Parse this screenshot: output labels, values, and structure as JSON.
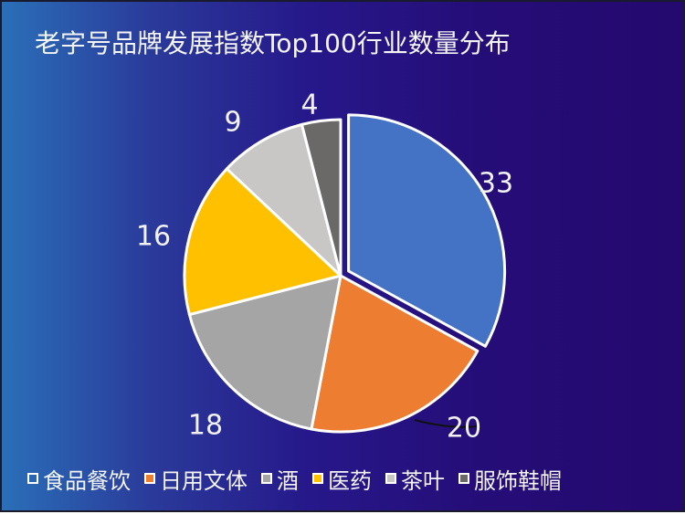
{
  "title": "老字号品牌发展指数Top100行业数量分布",
  "chart_data": {
    "type": "pie",
    "title": "老字号品牌发展指数Top100行业数量分布",
    "categories": [
      "食品餐饮",
      "日用文体",
      "酒",
      "医药",
      "茶叶",
      "服饰鞋帽"
    ],
    "values": [
      33,
      20,
      18,
      16,
      9,
      4
    ],
    "colors": [
      "#4472c4",
      "#ed7d31",
      "#a5a5a5",
      "#ffc000",
      "#c9c6c6",
      "#6b6868"
    ],
    "exploded": "食品餐饮",
    "legend_position": "bottom"
  }
}
